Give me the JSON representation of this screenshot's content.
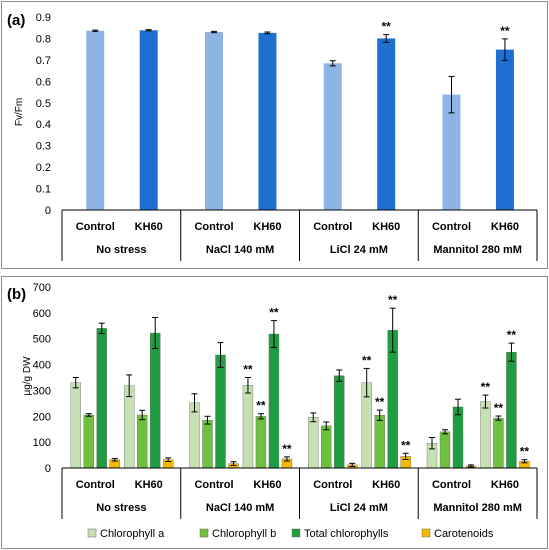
{
  "chart_data": [
    {
      "type": "bar",
      "panel_label": "(a)",
      "ylabel": "Fv/Fm",
      "ylim": [
        0,
        0.9
      ],
      "yticks": [
        "0",
        "0.1",
        "0.2",
        "0.3",
        "0.4",
        "0.5",
        "0.6",
        "0.7",
        "0.8",
        "0.9"
      ],
      "groups": [
        "No stress",
        "NaCl 140 mM",
        "LiCl 24 mM",
        "Mannitol 280 mM"
      ],
      "categories": [
        "Control",
        "KH60"
      ],
      "colors": [
        "#8db4e2",
        "#1f6fd1"
      ],
      "bars": [
        {
          "group": 0,
          "cat": 0,
          "value": 0.836,
          "err": 0.003,
          "sig": ""
        },
        {
          "group": 0,
          "cat": 1,
          "value": 0.838,
          "err": 0.003,
          "sig": ""
        },
        {
          "group": 1,
          "cat": 0,
          "value": 0.83,
          "err": 0.003,
          "sig": ""
        },
        {
          "group": 1,
          "cat": 1,
          "value": 0.826,
          "err": 0.004,
          "sig": ""
        },
        {
          "group": 2,
          "cat": 0,
          "value": 0.684,
          "err": 0.012,
          "sig": ""
        },
        {
          "group": 2,
          "cat": 1,
          "value": 0.8,
          "err": 0.018,
          "sig": "**"
        },
        {
          "group": 3,
          "cat": 0,
          "value": 0.538,
          "err": 0.085,
          "sig": ""
        },
        {
          "group": 3,
          "cat": 1,
          "value": 0.748,
          "err": 0.05,
          "sig": "**"
        }
      ]
    },
    {
      "type": "bar",
      "panel_label": "(b)",
      "ylabel": "μg/g DW",
      "ylim": [
        0,
        700
      ],
      "yticks": [
        "0",
        "100",
        "200",
        "300",
        "400",
        "500",
        "600",
        "700"
      ],
      "groups": [
        "No stress",
        "NaCl 140 mM",
        "LiCl 24 mM",
        "Mannitol 280 mM"
      ],
      "categories": [
        "Control",
        "KH60"
      ],
      "series": [
        {
          "name": "Chlorophyll  a",
          "color": "#c6e0b4"
        },
        {
          "name": "Chlorophyll  b",
          "color": "#70c040"
        },
        {
          "name": "Total chlorophylls",
          "color": "#1e9e40"
        },
        {
          "name": "Carotenoids",
          "color": "#f5b800"
        }
      ],
      "values": [
        [
          [
            330,
            205,
            540,
            32
          ],
          [
            318,
            205,
            522,
            32
          ]
        ],
        [
          [
            252,
            185,
            437,
            17
          ],
          [
            320,
            200,
            518,
            35
          ]
        ],
        [
          [
            196,
            163,
            357,
            12
          ],
          [
            330,
            204,
            533,
            45
          ]
        ],
        [
          [
            96,
            140,
            236,
            8
          ],
          [
            257,
            193,
            448,
            26
          ]
        ]
      ],
      "errors": [
        [
          [
            20,
            5,
            20,
            5
          ],
          [
            42,
            18,
            60,
            7
          ]
        ],
        [
          [
            35,
            15,
            48,
            7
          ],
          [
            30,
            10,
            52,
            8
          ]
        ],
        [
          [
            17,
            15,
            22,
            6
          ],
          [
            55,
            20,
            85,
            12
          ]
        ],
        [
          [
            22,
            8,
            30,
            4
          ],
          [
            25,
            8,
            35,
            6
          ]
        ]
      ],
      "sig": [
        [
          [
            "",
            "",
            "",
            ""
          ],
          [
            "",
            "",
            "",
            ""
          ]
        ],
        [
          [
            "",
            "",
            "",
            ""
          ],
          [
            "**",
            "**",
            "**",
            "**"
          ]
        ],
        [
          [
            "",
            "",
            "",
            ""
          ],
          [
            "**",
            "**",
            "**",
            "**"
          ]
        ],
        [
          [
            "",
            "",
            "",
            ""
          ],
          [
            "**",
            "**",
            "**",
            "**"
          ]
        ]
      ]
    }
  ]
}
